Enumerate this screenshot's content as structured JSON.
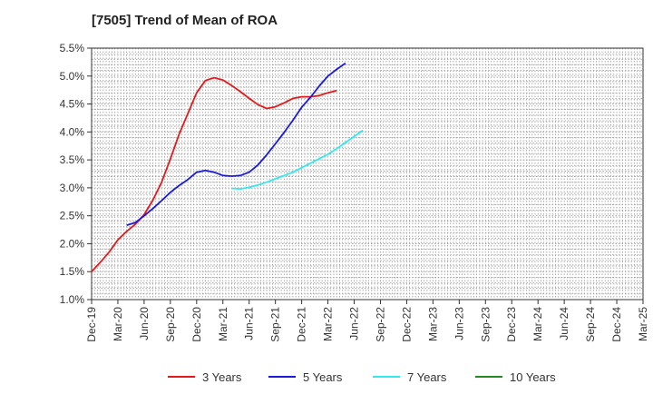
{
  "chart_data": {
    "type": "line",
    "title": "[7505]  Trend of Mean of ROA",
    "xlabel": "",
    "ylabel": "",
    "ylim": [
      1.0,
      5.5
    ],
    "yticks": [
      1.0,
      1.5,
      2.0,
      2.5,
      3.0,
      3.5,
      4.0,
      4.5,
      5.0,
      5.5
    ],
    "ytick_labels": [
      "1.0%",
      "1.5%",
      "2.0%",
      "2.5%",
      "3.0%",
      "3.5%",
      "4.0%",
      "4.5%",
      "5.0%",
      "5.5%"
    ],
    "x_ticks": [
      "Dec-19",
      "Mar-20",
      "Jun-20",
      "Sep-20",
      "Dec-20",
      "Mar-21",
      "Jun-21",
      "Sep-21",
      "Dec-21",
      "Mar-22",
      "Jun-22",
      "Sep-22",
      "Dec-22",
      "Mar-23",
      "Jun-23",
      "Sep-23",
      "Dec-23",
      "Mar-24",
      "Jun-24",
      "Sep-24",
      "Dec-24",
      "Mar-25"
    ],
    "grid": true,
    "legend_position": "bottom",
    "series": [
      {
        "name": "3 Years",
        "color": "#e31a1c",
        "start_index": 0,
        "values": [
          1.5,
          1.67,
          1.85,
          2.07,
          2.22,
          2.35,
          2.52,
          2.78,
          3.1,
          3.52,
          3.96,
          4.33,
          4.7,
          4.92,
          4.97,
          4.93,
          4.83,
          4.72,
          4.6,
          4.49,
          4.42,
          4.45,
          4.52,
          4.6,
          4.63,
          4.63,
          4.65,
          4.7,
          4.74
        ]
      },
      {
        "name": "5 Years",
        "color": "#1a1adc",
        "start_index": 4,
        "values": [
          2.33,
          2.38,
          2.5,
          2.63,
          2.77,
          2.92,
          3.04,
          3.15,
          3.28,
          3.31,
          3.28,
          3.22,
          3.21,
          3.22,
          3.28,
          3.41,
          3.59,
          3.79,
          3.99,
          4.21,
          4.44,
          4.62,
          4.82,
          5.0,
          5.12,
          5.23
        ]
      },
      {
        "name": "7 Years",
        "color": "#33e8f0",
        "start_index": 16,
        "values": [
          2.99,
          2.98,
          3.01,
          3.05,
          3.1,
          3.16,
          3.22,
          3.28,
          3.36,
          3.44,
          3.52,
          3.6,
          3.7,
          3.81,
          3.92,
          4.03
        ]
      },
      {
        "name": "10 Years",
        "color": "#228b22",
        "start_index": 0,
        "values": []
      }
    ]
  }
}
